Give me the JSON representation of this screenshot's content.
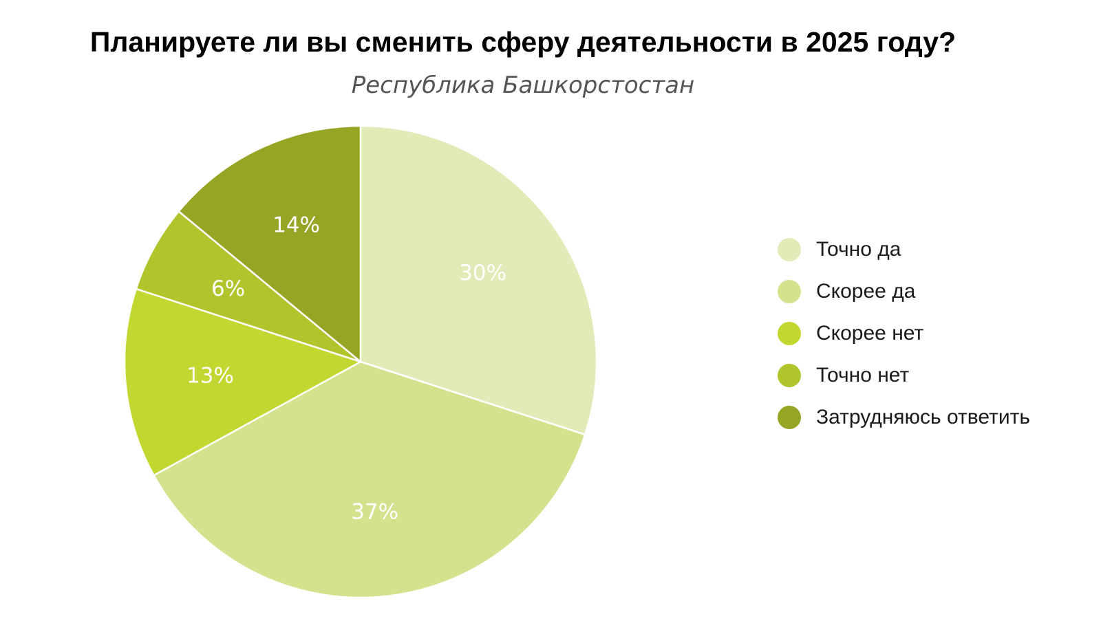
{
  "chart_data": {
    "type": "pie",
    "title": "Планируете ли вы сменить сферу деятельности в 2025 году?",
    "subtitle": "Республика Башкорстостан",
    "legend_position": "right",
    "slices": [
      {
        "label": "Точно да",
        "value": 30,
        "display": "30%",
        "color": "#e0ebb8"
      },
      {
        "label": "Скорее да",
        "value": 37,
        "display": "37%",
        "color": "#d2e28d"
      },
      {
        "label": "Скорее нет",
        "value": 13,
        "display": "13%",
        "color": "#c2d830"
      },
      {
        "label": "Точно нет",
        "value": 6,
        "display": "6%",
        "color": "#b0c52c"
      },
      {
        "label": "Затрудняюсь ответить",
        "value": 14,
        "display": "14%",
        "color": "#96a524"
      }
    ]
  }
}
